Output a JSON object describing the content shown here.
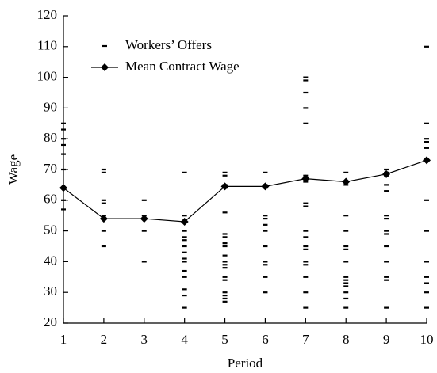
{
  "chart_data": {
    "type": "line",
    "x_label": "Period",
    "y_label": "Wage",
    "xlim": [
      1,
      10
    ],
    "xticks": [
      1,
      2,
      3,
      4,
      5,
      6,
      7,
      8,
      9,
      10
    ],
    "ylim": [
      20,
      120
    ],
    "yticks": [
      20,
      30,
      40,
      50,
      60,
      70,
      80,
      90,
      100,
      110,
      120
    ],
    "legend": "top-left",
    "series": [
      {
        "name": "Workers’ Offers",
        "color": "#000000",
        "marker": "dash",
        "line": false,
        "x": [
          1,
          1,
          1,
          1,
          1,
          1,
          1,
          1,
          1,
          2,
          2,
          2,
          2,
          2,
          2,
          2,
          2,
          3,
          3,
          3,
          3,
          3,
          4,
          4,
          4,
          4,
          4,
          4,
          4,
          4,
          4,
          4,
          4,
          4,
          4,
          4,
          4,
          5,
          5,
          5,
          5,
          5,
          5,
          5,
          5,
          5,
          5,
          5,
          5,
          5,
          5,
          5,
          5,
          5,
          5,
          5,
          6,
          6,
          6,
          6,
          6,
          6,
          6,
          6,
          6,
          6,
          6,
          6,
          7,
          7,
          7,
          7,
          7,
          7,
          7,
          7,
          7,
          7,
          7,
          7,
          7,
          7,
          7,
          7,
          7,
          7,
          7,
          8,
          8,
          8,
          8,
          8,
          8,
          8,
          8,
          8,
          8,
          8,
          8,
          8,
          8,
          8,
          9,
          9,
          9,
          9,
          9,
          9,
          9,
          9,
          9,
          9,
          9,
          9,
          9,
          9,
          10,
          10,
          10,
          10,
          10,
          10,
          10,
          10,
          10,
          10,
          10,
          10,
          10
        ],
        "values": [
          85,
          83,
          80,
          78,
          75,
          70,
          64,
          60,
          57,
          70,
          69,
          60,
          59,
          55,
          54,
          50,
          45,
          60,
          55,
          54,
          50,
          40,
          69,
          55,
          53,
          50,
          48,
          47,
          45,
          43,
          41,
          40,
          37,
          35,
          31,
          29,
          25,
          69,
          68,
          65,
          64,
          56,
          49,
          48,
          46,
          45,
          42,
          40,
          39,
          38,
          35,
          34,
          30,
          29,
          28,
          27,
          69,
          65,
          64,
          55,
          54,
          52,
          50,
          45,
          40,
          39,
          35,
          30,
          100,
          99,
          95,
          90,
          85,
          68,
          67,
          66,
          59,
          58,
          50,
          48,
          45,
          44,
          40,
          39,
          35,
          30,
          25,
          69,
          66,
          65,
          55,
          50,
          45,
          44,
          40,
          35,
          34,
          33,
          32,
          30,
          28,
          25,
          70,
          69,
          68,
          65,
          63,
          55,
          54,
          50,
          49,
          45,
          40,
          35,
          34,
          25,
          110,
          85,
          80,
          79,
          77,
          73,
          60,
          50,
          40,
          35,
          33,
          30,
          25
        ]
      },
      {
        "name": "Mean Contract Wage",
        "color": "#000000",
        "marker": "diamond",
        "line": true,
        "x": [
          1,
          2,
          3,
          4,
          5,
          6,
          7,
          8,
          9,
          10
        ],
        "values": [
          64,
          54,
          54,
          53,
          64.5,
          64.5,
          67,
          66,
          68.5,
          73
        ]
      }
    ]
  }
}
